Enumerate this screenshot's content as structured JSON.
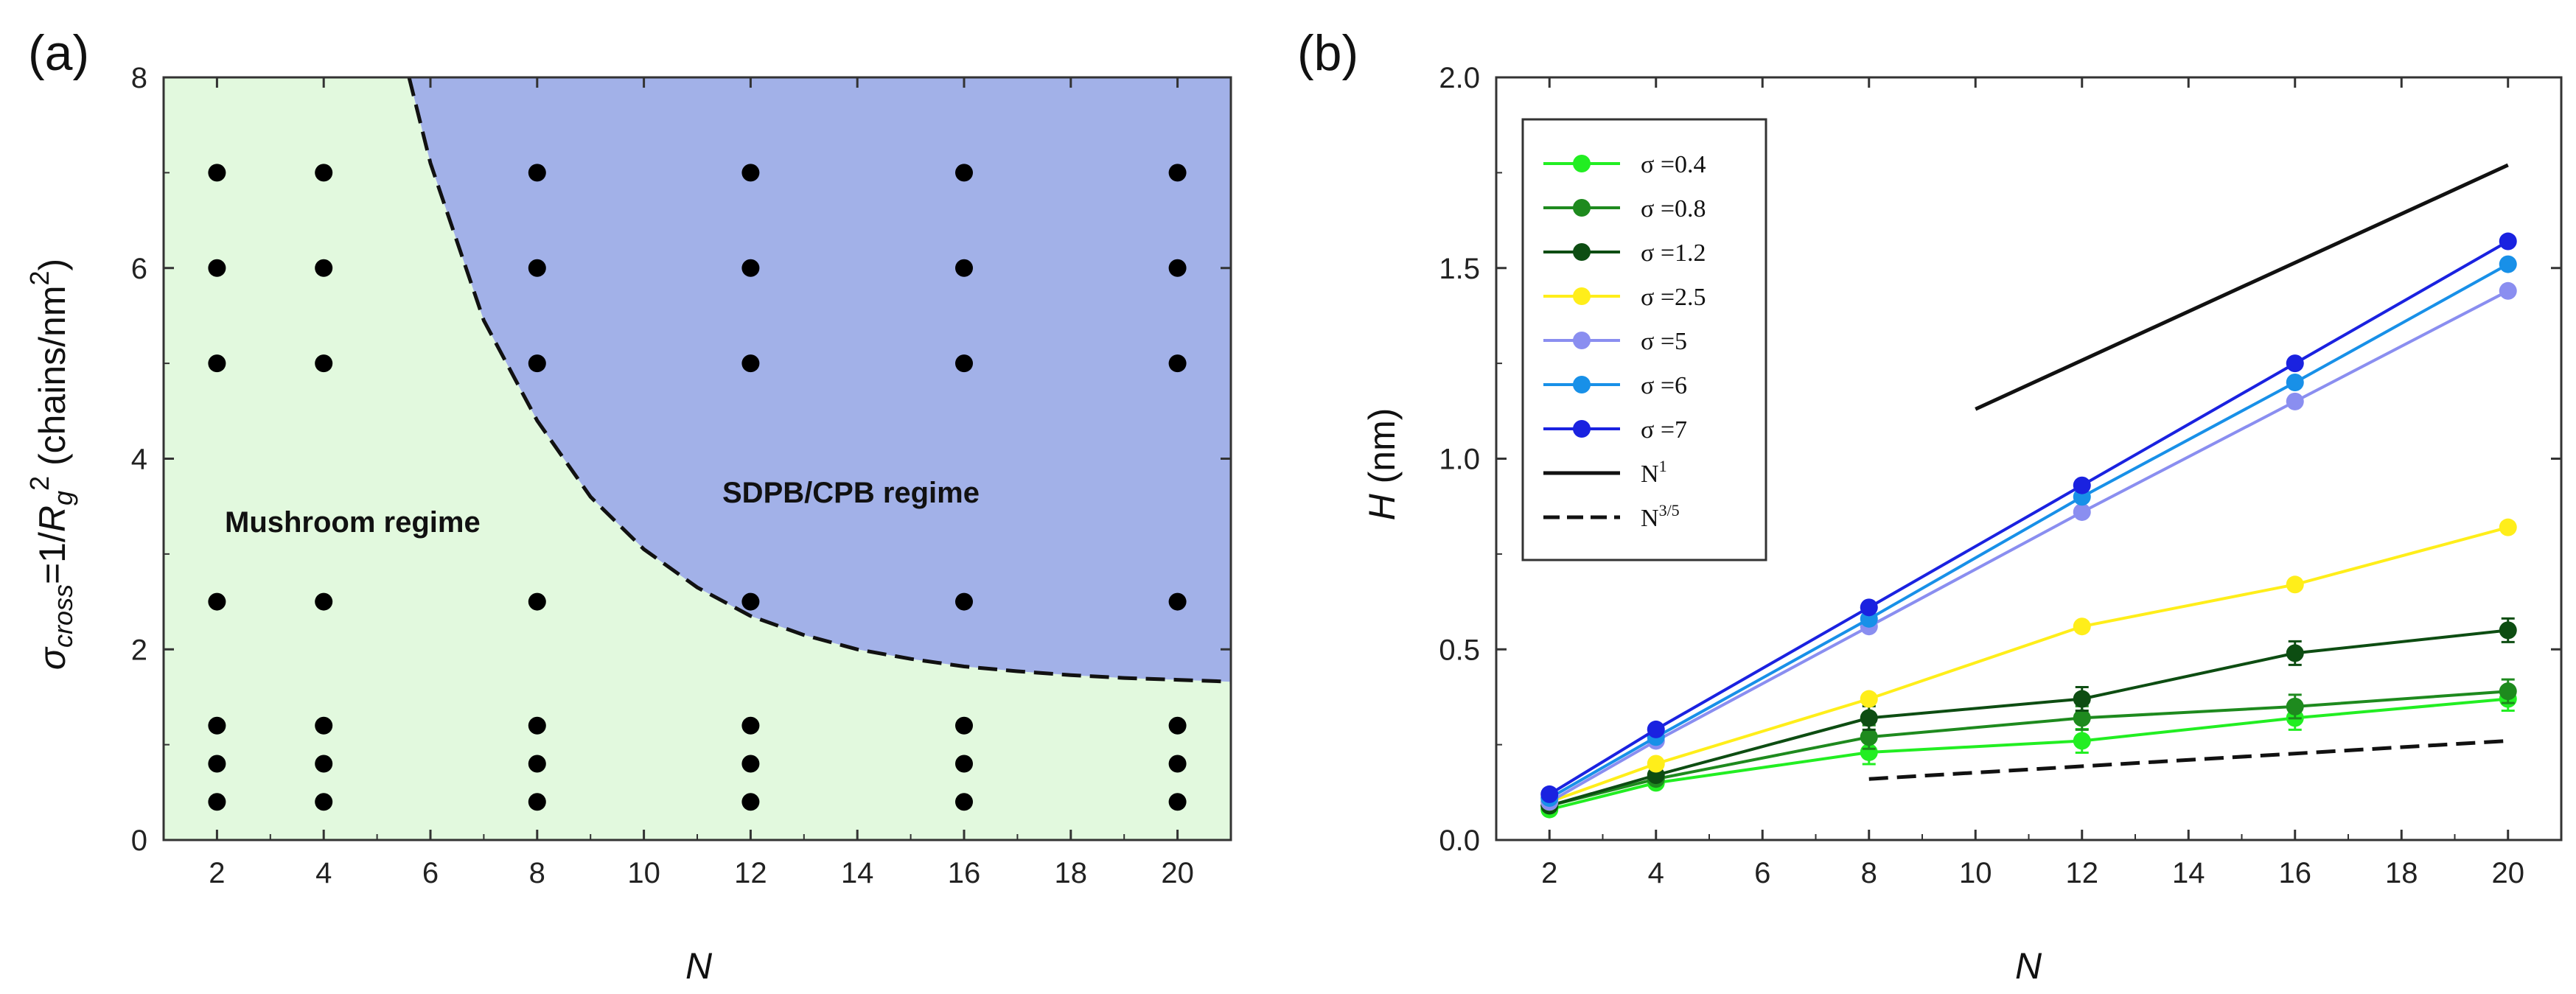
{
  "chart_data": [
    {
      "panel": "(a)",
      "type": "scatter",
      "xlabel": "N",
      "ylabel": "σcross=1/Rg2 (chains/nm2)",
      "ylabel_parts": {
        "sigma": "σ",
        "sub1": "cross",
        "eq": "=1/",
        "r": "R",
        "sub2": "g",
        "sup": "2",
        "unit": " (chains/nm",
        "sup2": "2",
        "close": ")"
      },
      "xlim": [
        1,
        21
      ],
      "ylim": [
        0,
        8
      ],
      "x_ticks": [
        2,
        4,
        6,
        8,
        10,
        12,
        14,
        16,
        18,
        20
      ],
      "y_ticks": [
        0,
        2,
        4,
        6,
        8
      ],
      "x_points": [
        2,
        4,
        8,
        12,
        16,
        20
      ],
      "sigma_points": [
        0.4,
        0.8,
        1.2,
        2.5,
        5,
        6,
        7
      ],
      "regions": [
        {
          "name": "Mushroom regime",
          "color": "#e2f9de"
        },
        {
          "name": "SDPB/CPB regime",
          "color": "#a2b1e8"
        }
      ],
      "boundary": {
        "style": "dashed",
        "x": [
          5.6,
          6,
          7,
          8,
          9,
          10,
          11,
          12,
          13,
          14,
          15,
          16,
          17,
          18,
          19,
          20,
          21
        ],
        "y": [
          8.0,
          7.1,
          5.45,
          4.4,
          3.6,
          3.05,
          2.65,
          2.35,
          2.15,
          2.0,
          1.9,
          1.82,
          1.77,
          1.73,
          1.7,
          1.68,
          1.66
        ]
      }
    },
    {
      "panel": "(b)",
      "type": "line",
      "xlabel": "N",
      "ylabel": "H (nm)",
      "ylabel_parts": {
        "italic": "H",
        "rest": " (nm)"
      },
      "xlim": [
        1,
        21
      ],
      "ylim": [
        0,
        2.0
      ],
      "x_ticks": [
        2,
        4,
        6,
        8,
        10,
        12,
        14,
        16,
        18,
        20
      ],
      "y_ticks": [
        0.0,
        0.5,
        1.0,
        1.5,
        2.0
      ],
      "y_tick_labels": [
        "0.0",
        "0.5",
        "1.0",
        "1.5",
        "2.0"
      ],
      "x": [
        2,
        4,
        8,
        12,
        16,
        20
      ],
      "series": [
        {
          "name": "σ =0.4",
          "color": "#22ee22",
          "values": [
            0.08,
            0.15,
            0.23,
            0.26,
            0.32,
            0.37
          ]
        },
        {
          "name": "σ =0.8",
          "color": "#1e8a1e",
          "values": [
            0.09,
            0.16,
            0.27,
            0.32,
            0.35,
            0.39
          ]
        },
        {
          "name": "σ =1.2",
          "color": "#0d4d12",
          "values": [
            0.09,
            0.17,
            0.32,
            0.37,
            0.49,
            0.55
          ]
        },
        {
          "name": "σ =2.5",
          "color": "#ffee1a",
          "values": [
            0.1,
            0.2,
            0.37,
            0.56,
            0.67,
            0.82
          ]
        },
        {
          "name": "σ =5",
          "color": "#8a8ef0",
          "values": [
            0.1,
            0.26,
            0.56,
            0.86,
            1.15,
            1.44
          ]
        },
        {
          "name": "σ =6",
          "color": "#1890e8",
          "values": [
            0.11,
            0.27,
            0.58,
            0.9,
            1.2,
            1.51
          ]
        },
        {
          "name": "σ =7",
          "color": "#1a22e0",
          "values": [
            0.12,
            0.29,
            0.61,
            0.93,
            1.25,
            1.57
          ]
        }
      ],
      "reference_lines": [
        {
          "name": "N",
          "sup": "1",
          "style": "solid",
          "x": [
            10,
            20
          ],
          "y": [
            1.13,
            1.77
          ]
        },
        {
          "name": "N",
          "sup": "3/5",
          "style": "dashed",
          "x": [
            8,
            20
          ],
          "y": [
            0.16,
            0.26
          ]
        }
      ]
    }
  ]
}
